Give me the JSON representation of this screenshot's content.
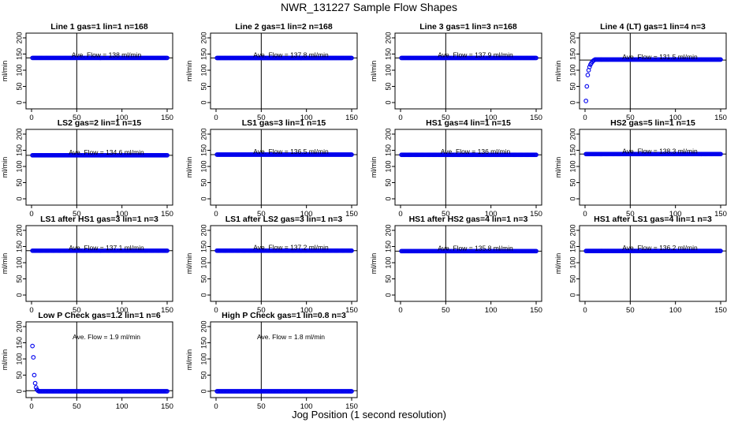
{
  "page": {
    "title": "NWR_131227  Sample Flow Shapes",
    "xlabel": "Jog Position (1 second resolution)"
  },
  "chart_data": [
    {
      "type": "scatter",
      "title": "Line 1 gas=1 lin=1 n=168",
      "ylabel": "ml/min",
      "annotation": "Ave. Flow =  138  ml/min",
      "xlim": [
        0,
        150
      ],
      "ylim": [
        0,
        200
      ],
      "xticks": [
        0,
        50,
        100,
        150
      ],
      "yticks": [
        0,
        50,
        100,
        150,
        200
      ],
      "vline": 50,
      "hline": 138,
      "shape": "flat",
      "level": 138
    },
    {
      "type": "scatter",
      "title": "Line 2 gas=1 lin=2 n=168",
      "ylabel": "ml/min",
      "annotation": "Ave. Flow =  137.8  ml/min",
      "xlim": [
        0,
        150
      ],
      "ylim": [
        0,
        200
      ],
      "xticks": [
        0,
        50,
        100,
        150
      ],
      "yticks": [
        0,
        50,
        100,
        150,
        200
      ],
      "vline": 50,
      "hline": 137.8,
      "shape": "flat",
      "level": 137.8
    },
    {
      "type": "scatter",
      "title": "Line 3 gas=1 lin=3 n=168",
      "ylabel": "ml/min",
      "annotation": "Ave. Flow =  137.9  ml/min",
      "xlim": [
        0,
        150
      ],
      "ylim": [
        0,
        200
      ],
      "xticks": [
        0,
        50,
        100,
        150
      ],
      "yticks": [
        0,
        50,
        100,
        150,
        200
      ],
      "vline": 50,
      "hline": 137.9,
      "shape": "flat",
      "level": 137.9
    },
    {
      "type": "scatter",
      "title": "Line 4 (LT) gas=1 lin=4 n=3",
      "ylabel": "ml/min",
      "annotation": "Ave. Flow =  131.5  ml/min",
      "xlim": [
        0,
        150
      ],
      "ylim": [
        0,
        200
      ],
      "xticks": [
        0,
        50,
        100,
        150
      ],
      "yticks": [
        0,
        50,
        100,
        150,
        200
      ],
      "vline": 50,
      "hline": 131.5,
      "shape": "rise",
      "level": 133,
      "ramp": [
        [
          1,
          5
        ],
        [
          2,
          50
        ],
        [
          3,
          85
        ],
        [
          4,
          100
        ],
        [
          5,
          110
        ],
        [
          6,
          117
        ],
        [
          7,
          122
        ],
        [
          8,
          126
        ],
        [
          9,
          129
        ],
        [
          10,
          131
        ]
      ]
    },
    {
      "type": "scatter",
      "title": "LS2 gas=2 lin=1 n=15",
      "ylabel": "ml/min",
      "annotation": "Ave. Flow =  134.6  ml/min",
      "xlim": [
        0,
        150
      ],
      "ylim": [
        0,
        200
      ],
      "xticks": [
        0,
        50,
        100,
        150
      ],
      "yticks": [
        0,
        50,
        100,
        150,
        200
      ],
      "vline": 50,
      "hline": 134.6,
      "shape": "flat",
      "level": 134.6
    },
    {
      "type": "scatter",
      "title": "LS1 gas=3 lin=1 n=15",
      "ylabel": "ml/min",
      "annotation": "Ave. Flow =  136.5  ml/min",
      "xlim": [
        0,
        150
      ],
      "ylim": [
        0,
        200
      ],
      "xticks": [
        0,
        50,
        100,
        150
      ],
      "yticks": [
        0,
        50,
        100,
        150,
        200
      ],
      "vline": 50,
      "hline": 136.5,
      "shape": "flat",
      "level": 136.5
    },
    {
      "type": "scatter",
      "title": "HS1 gas=4 lin=1 n=15",
      "ylabel": "ml/min",
      "annotation": "Ave. Flow =  136  ml/min",
      "xlim": [
        0,
        150
      ],
      "ylim": [
        0,
        200
      ],
      "xticks": [
        0,
        50,
        100,
        150
      ],
      "yticks": [
        0,
        50,
        100,
        150,
        200
      ],
      "vline": 50,
      "hline": 136,
      "shape": "flat",
      "level": 136
    },
    {
      "type": "scatter",
      "title": "HS2 gas=5 lin=1 n=15",
      "ylabel": "ml/min",
      "annotation": "Ave. Flow =  138.3  ml/min",
      "xlim": [
        0,
        150
      ],
      "ylim": [
        0,
        200
      ],
      "xticks": [
        0,
        50,
        100,
        150
      ],
      "yticks": [
        0,
        50,
        100,
        150,
        200
      ],
      "vline": 50,
      "hline": 138.3,
      "shape": "flat",
      "level": 138.3
    },
    {
      "type": "scatter",
      "title": "LS1 after HS1 gas=3 lin=1 n=3",
      "ylabel": "ml/min",
      "annotation": "Ave. Flow =  137.1  ml/min",
      "xlim": [
        0,
        150
      ],
      "ylim": [
        0,
        200
      ],
      "xticks": [
        0,
        50,
        100,
        150
      ],
      "yticks": [
        0,
        50,
        100,
        150,
        200
      ],
      "vline": 50,
      "hline": 137.1,
      "shape": "flat",
      "level": 137.1
    },
    {
      "type": "scatter",
      "title": "LS1 after LS2 gas=3 lin=1 n=3",
      "ylabel": "ml/min",
      "annotation": "Ave. Flow =  137.2  ml/min",
      "xlim": [
        0,
        150
      ],
      "ylim": [
        0,
        200
      ],
      "xticks": [
        0,
        50,
        100,
        150
      ],
      "yticks": [
        0,
        50,
        100,
        150,
        200
      ],
      "vline": 50,
      "hline": 137.2,
      "shape": "flat",
      "level": 137.2
    },
    {
      "type": "scatter",
      "title": "HS1 after HS2 gas=4 lin=1 n=3",
      "ylabel": "ml/min",
      "annotation": "Ave. Flow =  135.8  ml/min",
      "xlim": [
        0,
        150
      ],
      "ylim": [
        0,
        200
      ],
      "xticks": [
        0,
        50,
        100,
        150
      ],
      "yticks": [
        0,
        50,
        100,
        150,
        200
      ],
      "vline": 50,
      "hline": 135.8,
      "shape": "flat",
      "level": 135.8
    },
    {
      "type": "scatter",
      "title": "HS1 after LS1 gas=4 lin=1 n=3",
      "ylabel": "ml/min",
      "annotation": "Ave. Flow =  136.2  ml/min",
      "xlim": [
        0,
        150
      ],
      "ylim": [
        0,
        200
      ],
      "xticks": [
        0,
        50,
        100,
        150
      ],
      "yticks": [
        0,
        50,
        100,
        150,
        200
      ],
      "vline": 50,
      "hline": 136.2,
      "shape": "flat",
      "level": 136.2
    },
    {
      "type": "scatter",
      "title": "Low P Check gas=1.2 lin=1 n=6",
      "ylabel": "ml/min",
      "annotation": "Ave. Flow =  1.9  ml/min",
      "xlim": [
        0,
        150
      ],
      "ylim": [
        0,
        200
      ],
      "xticks": [
        0,
        50,
        100,
        150
      ],
      "yticks": [
        0,
        50,
        100,
        150,
        200
      ],
      "vline": 50,
      "hline": 1.9,
      "shape": "decay",
      "level": 0,
      "ramp": [
        [
          1,
          140
        ],
        [
          2,
          105
        ],
        [
          3,
          50
        ],
        [
          4,
          25
        ],
        [
          5,
          12
        ],
        [
          6,
          5
        ],
        [
          7,
          2
        ]
      ]
    },
    {
      "type": "scatter",
      "title": "High P Check gas=1 lin=0.8 n=3",
      "ylabel": "ml/min",
      "annotation": "Ave. Flow =  1.8  ml/min",
      "xlim": [
        0,
        150
      ],
      "ylim": [
        0,
        200
      ],
      "xticks": [
        0,
        50,
        100,
        150
      ],
      "yticks": [
        0,
        50,
        100,
        150,
        200
      ],
      "vline": 50,
      "hline": 1.8,
      "shape": "flat",
      "level": 0
    }
  ]
}
